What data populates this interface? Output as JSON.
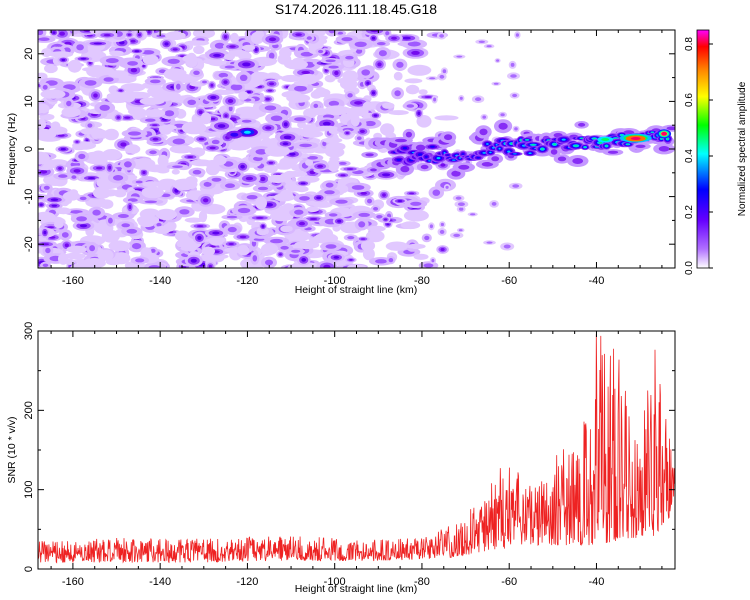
{
  "chart_data": [
    {
      "type": "heatmap",
      "title": "S174.2026.111.18.45.G18",
      "xlabel": "Height of straight line (km)",
      "ylabel": "Frequency (Hz)",
      "xlim": [
        -168,
        -22
      ],
      "ylim": [
        -25,
        25
      ],
      "xticks": [
        -160,
        -140,
        -120,
        -100,
        -80,
        -60,
        -40
      ],
      "yticks": [
        -20,
        -10,
        0,
        10,
        20
      ],
      "colorbar": {
        "label": "Normalized spectral amplitude",
        "range": [
          0.0,
          0.85
        ],
        "ticks": [
          "0.0",
          "0.2",
          "0.4",
          "0.6",
          "0.8"
        ],
        "colors": [
          "#ffffff",
          "#8800ff",
          "#0000ff",
          "#00ffff",
          "#00ff00",
          "#ffff00",
          "#ff8800",
          "#ff0000",
          "#ff00ff"
        ]
      },
      "features": [
        {
          "description": "strong signal ridge",
          "x": [
            -82,
            -70,
            -60,
            -50,
            -40,
            -30,
            -24
          ],
          "y": [
            -1.5,
            -0.5,
            0.5,
            1.0,
            1.5,
            2.3,
            3.0
          ],
          "peak_value": 0.85
        },
        {
          "description": "isolated blob",
          "x": -120,
          "y": 3.5,
          "value": 0.3
        }
      ]
    },
    {
      "type": "line",
      "xlabel": "Height of straight line (km)",
      "ylabel": "SNR (10 * v/v)",
      "xlim": [
        -168,
        -22
      ],
      "ylim": [
        0,
        300
      ],
      "xticks": [
        -160,
        -140,
        -120,
        -100,
        -80,
        -60,
        -40
      ],
      "yticks": [
        0,
        100,
        200,
        300
      ],
      "series": [
        {
          "name": "SNR",
          "color": "#ee2222",
          "envelope": [
            {
              "x": -168,
              "min": 8,
              "max": 35
            },
            {
              "x": -150,
              "min": 8,
              "max": 40
            },
            {
              "x": -130,
              "min": 8,
              "max": 38
            },
            {
              "x": -110,
              "min": 10,
              "max": 42
            },
            {
              "x": -90,
              "min": 10,
              "max": 38
            },
            {
              "x": -80,
              "min": 12,
              "max": 40
            },
            {
              "x": -72,
              "min": 15,
              "max": 60
            },
            {
              "x": -66,
              "min": 20,
              "max": 90
            },
            {
              "x": -62,
              "min": 25,
              "max": 148
            },
            {
              "x": -55,
              "min": 30,
              "max": 110
            },
            {
              "x": -48,
              "min": 30,
              "max": 150
            },
            {
              "x": -44,
              "min": 30,
              "max": 160
            },
            {
              "x": -40,
              "min": 30,
              "max": 300
            },
            {
              "x": -36,
              "min": 35,
              "max": 290
            },
            {
              "x": -30,
              "min": 40,
              "max": 160
            },
            {
              "x": -27,
              "min": 40,
              "max": 295
            },
            {
              "x": -24,
              "min": 60,
              "max": 210
            },
            {
              "x": -22,
              "min": 75,
              "max": 140
            }
          ]
        }
      ]
    }
  ]
}
